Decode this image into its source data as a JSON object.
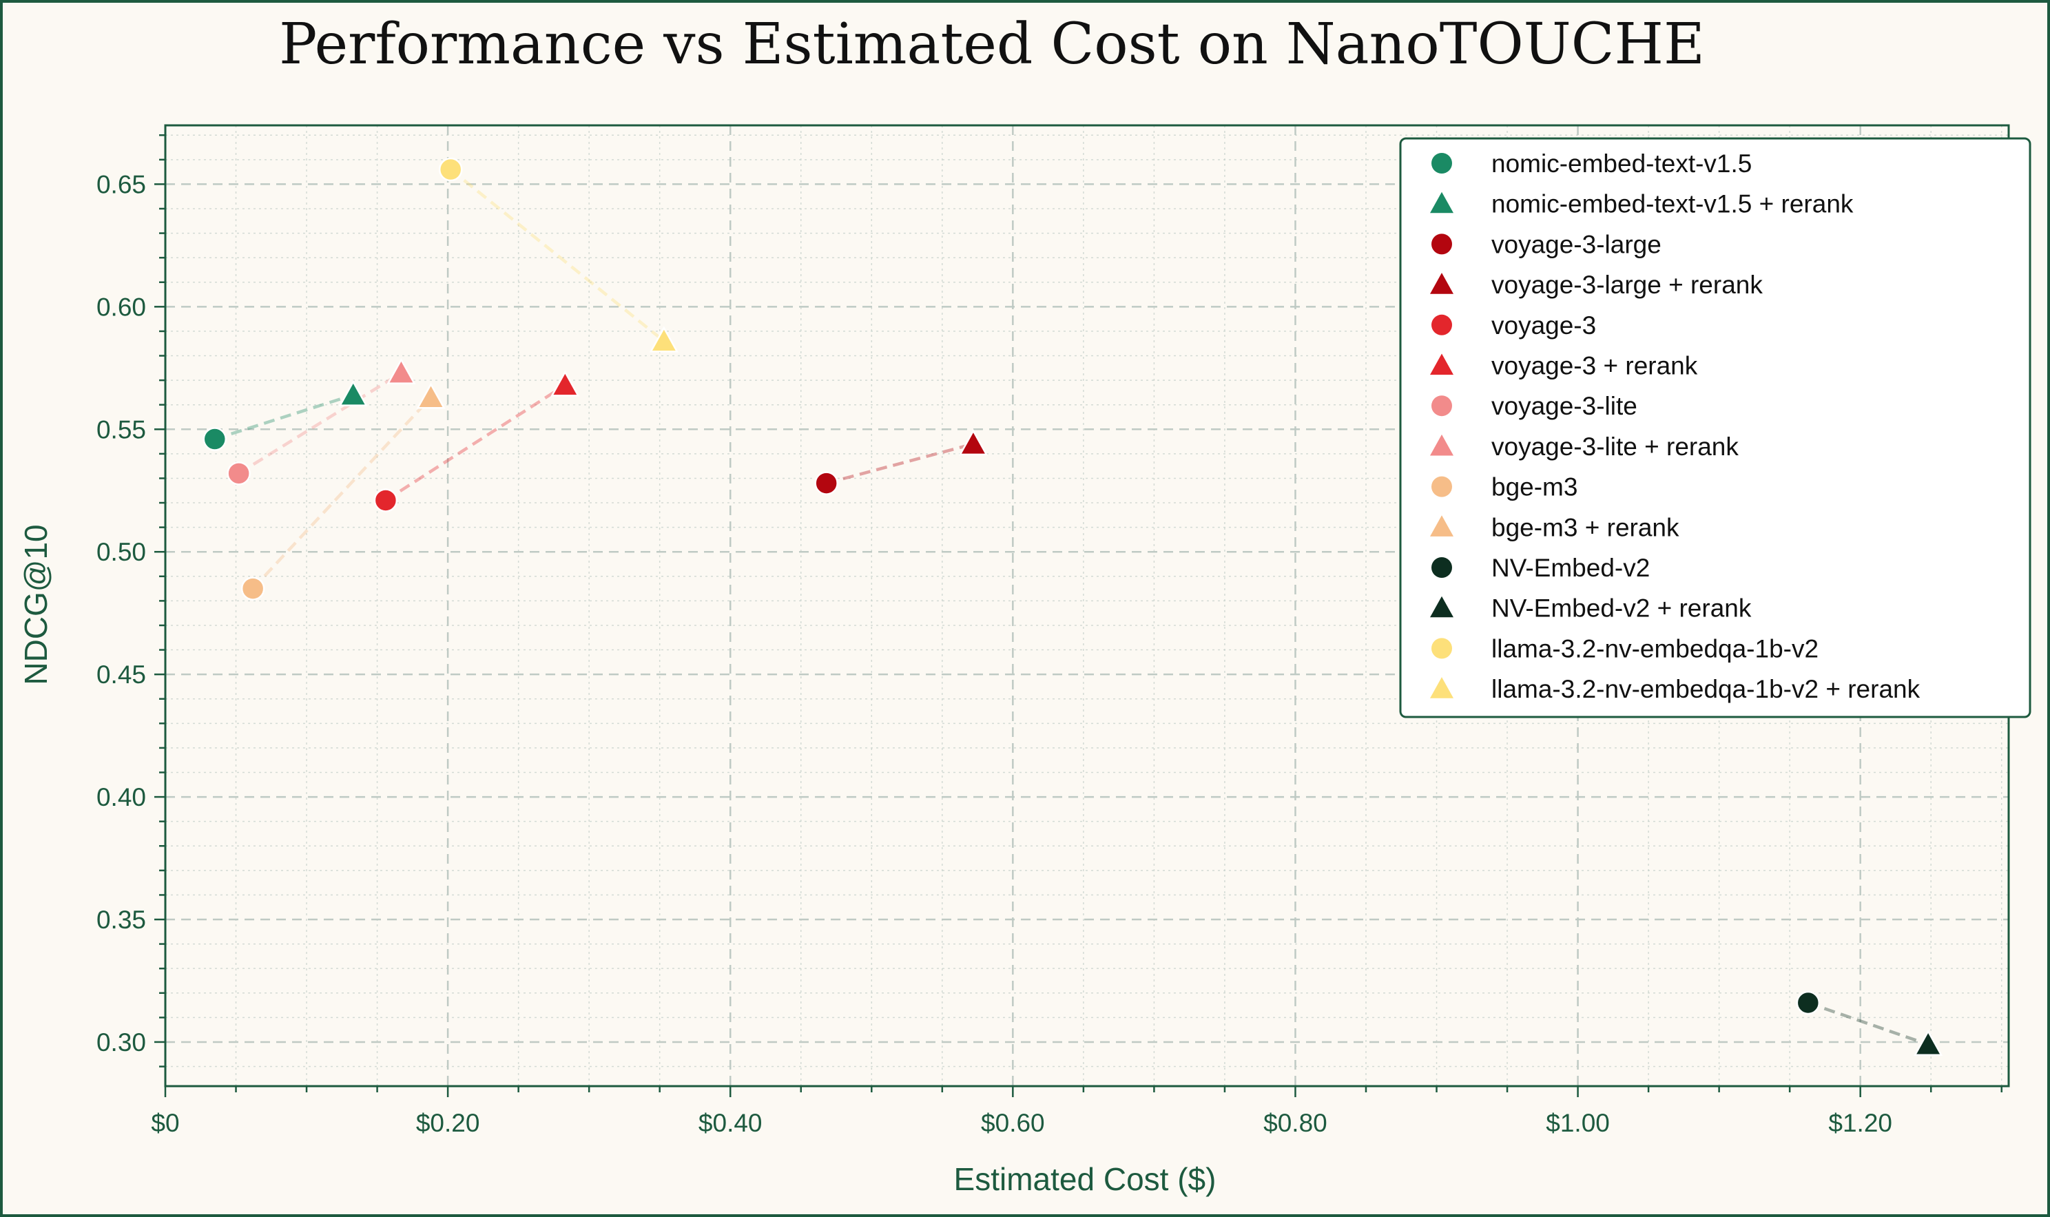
{
  "chart_data": {
    "type": "scatter",
    "title": "Performance vs Estimated Cost on NanoTOUCHE",
    "xlabel": "Estimated Cost ($)",
    "ylabel": "NDCG@10",
    "xlim": [
      0,
      1.305
    ],
    "ylim": [
      0.282,
      0.674
    ],
    "x_ticks": [
      0,
      0.2,
      0.4,
      0.6,
      0.8,
      1.0,
      1.2
    ],
    "x_tick_labels": [
      "$0",
      "$0.20",
      "$0.40",
      "$0.60",
      "$0.80",
      "$1.00",
      "$1.20"
    ],
    "y_ticks": [
      0.3,
      0.35,
      0.4,
      0.45,
      0.5,
      0.55,
      0.6,
      0.65
    ],
    "y_tick_labels": [
      "0.30",
      "0.35",
      "0.40",
      "0.45",
      "0.50",
      "0.55",
      "0.60",
      "0.65"
    ],
    "grid": true,
    "legend_position": "top-right",
    "series": [
      {
        "name": "nomic-embed-text-v1.5",
        "marker": "circle",
        "color": "#1a8a64",
        "x": 0.035,
        "y": 0.546,
        "pair": 0
      },
      {
        "name": "nomic-embed-text-v1.5 + rerank",
        "marker": "triangle",
        "color": "#1a8a64",
        "x": 0.133,
        "y": 0.564,
        "pair": 0
      },
      {
        "name": "voyage-3-large",
        "marker": "circle",
        "color": "#b3060f",
        "x": 0.468,
        "y": 0.528,
        "pair": 1
      },
      {
        "name": "voyage-3-large + rerank",
        "marker": "triangle",
        "color": "#b3060f",
        "x": 0.572,
        "y": 0.544,
        "pair": 1
      },
      {
        "name": "voyage-3",
        "marker": "circle",
        "color": "#e3262c",
        "x": 0.156,
        "y": 0.521,
        "pair": 2
      },
      {
        "name": "voyage-3 + rerank",
        "marker": "triangle",
        "color": "#e3262c",
        "x": 0.283,
        "y": 0.568,
        "pair": 2
      },
      {
        "name": "voyage-3-lite",
        "marker": "circle",
        "color": "#f28b8b",
        "x": 0.052,
        "y": 0.532,
        "pair": 3
      },
      {
        "name": "voyage-3-lite + rerank",
        "marker": "triangle",
        "color": "#f28b8b",
        "x": 0.167,
        "y": 0.573,
        "pair": 3
      },
      {
        "name": "bge-m3",
        "marker": "circle",
        "color": "#f6bd88",
        "x": 0.062,
        "y": 0.485,
        "pair": 4
      },
      {
        "name": "bge-m3 + rerank",
        "marker": "triangle",
        "color": "#f6bd88",
        "x": 0.188,
        "y": 0.563,
        "pair": 4
      },
      {
        "name": "NV-Embed-v2",
        "marker": "circle",
        "color": "#0d2e20",
        "x": 1.163,
        "y": 0.316,
        "pair": 5
      },
      {
        "name": "NV-Embed-v2 + rerank",
        "marker": "triangle",
        "color": "#0d2e20",
        "x": 1.248,
        "y": 0.299,
        "pair": 5
      },
      {
        "name": "llama-3.2-nv-embedqa-1b-v2",
        "marker": "circle",
        "color": "#fde07a",
        "x": 0.202,
        "y": 0.656,
        "pair": 6
      },
      {
        "name": "llama-3.2-nv-embedqa-1b-v2 + rerank",
        "marker": "triangle",
        "color": "#fde07a",
        "x": 0.353,
        "y": 0.586,
        "pair": 6
      }
    ]
  },
  "colors": {
    "background": "#fcf9f3",
    "frame": "#1d5a3f",
    "axis_text": "#1d5a3f",
    "grid": "#c9d3cd"
  }
}
